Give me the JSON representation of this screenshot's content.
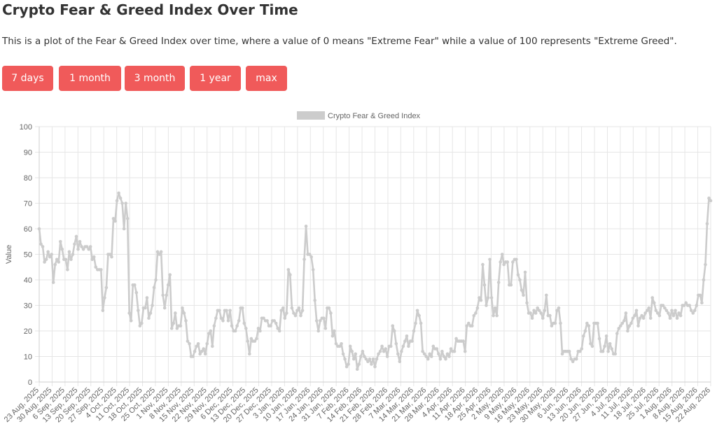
{
  "page": {
    "title": "Crypto Fear & Greed Index Over Time",
    "description": "This is a plot of the Fear & Greed Index over time, where a value of 0 means \"Extreme Fear\" while a value of 100 represents \"Extreme Greed\"."
  },
  "buttons": [
    "7 days",
    "1 month",
    "3 month",
    "1 year",
    "max"
  ],
  "colors": {
    "button": "#f05a5a",
    "line": "#cccccc",
    "grid": "#e6e6e6"
  },
  "chart_data": {
    "type": "line",
    "title": "",
    "xlabel": "",
    "ylabel": "Value",
    "ylim": [
      0,
      100
    ],
    "grid": true,
    "legend_position": "top",
    "series": [
      {
        "name": "Crypto Fear & Greed Index",
        "values": [
          60,
          54,
          53,
          47,
          48,
          51,
          49,
          50,
          39,
          46,
          48,
          47,
          55,
          52,
          48,
          48,
          44,
          51,
          48,
          50,
          54,
          57,
          52,
          55,
          53,
          52,
          53,
          53,
          52,
          53,
          48,
          49,
          45,
          44,
          44,
          44,
          28,
          33,
          37,
          50,
          50,
          49,
          64,
          63,
          71,
          74,
          72,
          70,
          60,
          70,
          64,
          27,
          24,
          38,
          38,
          35,
          28,
          22,
          23,
          29,
          29,
          33,
          25,
          27,
          30,
          37,
          40,
          51,
          50,
          51,
          34,
          29,
          34,
          38,
          42,
          21,
          23,
          27,
          21,
          22,
          22,
          29,
          27,
          24,
          16,
          15,
          10,
          10,
          12,
          14,
          15,
          11,
          12,
          13,
          11,
          15,
          19,
          20,
          14,
          22,
          25,
          28,
          28,
          25,
          24,
          28,
          28,
          24,
          28,
          22,
          20,
          20,
          22,
          24,
          29,
          29,
          23,
          21,
          16,
          11,
          17,
          16,
          16,
          17,
          21,
          20,
          25,
          25,
          24,
          24,
          22,
          22,
          24,
          24,
          23,
          21,
          20,
          28,
          29,
          25,
          27,
          44,
          42,
          29,
          27,
          26,
          28,
          29,
          26,
          28,
          48,
          61,
          50,
          50,
          49,
          44,
          32,
          24,
          20,
          24,
          25,
          25,
          21,
          29,
          29,
          27,
          18,
          20,
          15,
          14,
          14,
          15,
          11,
          9,
          6,
          7,
          14,
          12,
          9,
          11,
          5,
          7,
          10,
          12,
          10,
          9,
          8,
          9,
          7,
          9,
          6,
          9,
          11,
          12,
          14,
          12,
          13,
          10,
          14,
          14,
          22,
          20,
          15,
          11,
          8,
          12,
          14,
          16,
          18,
          14,
          16,
          16,
          20,
          23,
          28,
          26,
          23,
          12,
          11,
          10,
          9,
          11,
          10,
          14,
          13,
          13,
          11,
          9,
          12,
          10,
          9,
          11,
          10,
          13,
          12,
          12,
          17,
          16,
          16,
          16,
          16,
          12,
          22,
          23,
          22,
          22,
          26,
          27,
          29,
          33,
          32,
          46,
          38,
          30,
          33,
          48,
          33,
          26,
          29,
          26,
          39,
          47,
          50,
          46,
          47,
          47,
          38,
          38,
          47,
          48,
          48,
          42,
          40,
          36,
          34,
          43,
          31,
          27,
          27,
          25,
          28,
          27,
          29,
          28,
          27,
          25,
          28,
          34,
          26,
          26,
          22,
          23,
          23,
          28,
          29,
          23,
          11,
          12,
          12,
          12,
          12,
          9,
          8,
          9,
          9,
          12,
          12,
          13,
          18,
          20,
          23,
          22,
          15,
          14,
          23,
          23,
          23,
          17,
          12,
          12,
          14,
          18,
          12,
          15,
          13,
          11,
          11,
          19,
          21,
          22,
          23,
          24,
          27,
          20,
          22,
          23,
          25,
          26,
          28,
          22,
          25,
          26,
          25,
          27,
          28,
          29,
          25,
          33,
          31,
          28,
          27,
          26,
          30,
          30,
          29,
          28,
          27,
          25,
          28,
          26,
          28,
          25,
          27,
          26,
          30,
          30,
          31,
          30,
          30,
          28,
          27,
          28,
          30,
          34,
          34,
          31,
          40,
          46,
          62,
          72,
          71
        ]
      }
    ],
    "x_tick_labels": [
      "23 Aug, 2025",
      "30 Aug, 2025",
      "6 Sep, 2025",
      "13 Sep, 2025",
      "20 Sep, 2025",
      "27 Sep, 2025",
      "4 Oct, 2025",
      "11 Oct, 2025",
      "18 Oct, 2025",
      "25 Oct, 2025",
      "1 Nov, 2025",
      "8 Nov, 2025",
      "15 Nov, 2025",
      "22 Nov, 2025",
      "29 Nov, 2025",
      "6 Dec, 2025",
      "13 Dec, 2025",
      "20 Dec, 2025",
      "27 Dec, 2025",
      "3 Jan, 2026",
      "10 Jan, 2026",
      "17 Jan, 2026",
      "24 Jan, 2026",
      "31 Jan, 2026",
      "7 Feb, 2026",
      "14 Feb, 2026",
      "21 Feb, 2026",
      "28 Feb, 2026",
      "7 Mar, 2026",
      "14 Mar, 2026",
      "21 Mar, 2026",
      "28 Mar, 2026",
      "4 Apr, 2026",
      "11 Apr, 2026",
      "18 Apr, 2026",
      "25 Apr, 2026",
      "2 May, 2026",
      "9 May, 2026",
      "16 May, 2026",
      "23 May, 2026",
      "30 May, 2026",
      "6 Jun, 2026",
      "13 Jun, 2026",
      "20 Jun, 2026",
      "27 Jun, 2026",
      "4 Jul, 2026",
      "11 Jul, 2026",
      "18 Jul, 2026",
      "25 Jul, 2026",
      "1 Aug, 2026",
      "8 Aug, 2026",
      "15 Aug, 2026",
      "22 Aug, 2026"
    ],
    "y_ticks": [
      0,
      10,
      20,
      30,
      40,
      50,
      60,
      70,
      80,
      90,
      100
    ]
  }
}
